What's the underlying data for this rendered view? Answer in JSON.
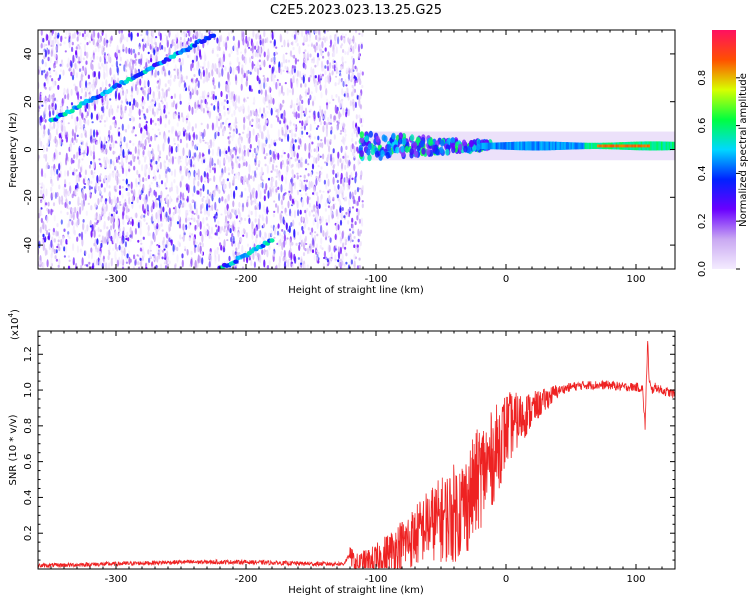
{
  "title": "C2E5.2023.023.13.25.G25",
  "chart_data": [
    {
      "type": "heatmap",
      "title": "C2E5.2023.023.13.25.G25",
      "xlabel": "Height of straight line (km)",
      "ylabel": "Frequency (Hz)",
      "xlim": [
        -360,
        130
      ],
      "ylim": [
        -50,
        50
      ],
      "xticks": [
        -300,
        -200,
        -100,
        0,
        100
      ],
      "yticks": [
        -40,
        -20,
        0,
        20,
        40
      ],
      "colorbar": {
        "label": "Normalized spectral amplitude",
        "range": [
          0,
          1
        ],
        "ticks": [
          "0.0",
          "0.2",
          "0.4",
          "0.6",
          "0.8"
        ],
        "colors": [
          "#f4ecff",
          "#c9a8f2",
          "#6a00ff",
          "#0022ff",
          "#00d8ff",
          "#00ff40",
          "#d8ff00",
          "#ff5000",
          "#ff1060"
        ]
      },
      "features": {
        "diagonal_line_upper": {
          "x": [
            -350,
            -225
          ],
          "y": [
            12,
            48
          ]
        },
        "diagonal_line_lower": {
          "x": [
            -220,
            -180
          ],
          "y": [
            -50,
            -38
          ]
        },
        "dense_noise_region_x": [
          -360,
          -110
        ],
        "carrier_line_y": 1.5
      }
    },
    {
      "type": "line",
      "xlabel": "Height of straight line (km)",
      "ylabel": "SNR (10 * v/v)",
      "y_multiplier": "(x10",
      "y_multiplier_exp": "4",
      "y_multiplier_close": ")",
      "xlim": [
        -360,
        130
      ],
      "ylim": [
        0,
        1.33
      ],
      "xticks": [
        -300,
        -200,
        -100,
        0,
        100
      ],
      "yticks": [
        0.2,
        0.4,
        0.6,
        0.8,
        1.0,
        1.2
      ],
      "series": [
        {
          "color": "#ee2222",
          "x": [
            -360,
            -300,
            -250,
            -200,
            -150,
            -125,
            -120,
            -115,
            -100,
            -90,
            -80,
            -70,
            -60,
            -50,
            -40,
            -30,
            -20,
            -10,
            0,
            10,
            20,
            30,
            40,
            50,
            60,
            70,
            80,
            90,
            100,
            105,
            107,
            109,
            110,
            112,
            115,
            120,
            125,
            130
          ],
          "y": [
            0.02,
            0.03,
            0.04,
            0.04,
            0.03,
            0.03,
            0.08,
            0.03,
            0.05,
            0.1,
            0.15,
            0.2,
            0.27,
            0.3,
            0.34,
            0.4,
            0.55,
            0.65,
            0.8,
            0.85,
            0.9,
            0.95,
            1.0,
            1.02,
            1.03,
            1.03,
            1.03,
            1.02,
            1.02,
            1.01,
            0.8,
            1.3,
            1.05,
            1.0,
            1.02,
            1.0,
            0.99,
            0.98
          ],
          "noise_envelope": {
            "x": [
              -120,
              -100,
              -80,
              -60,
              -40,
              -20,
              -5,
              10,
              25,
              40
            ],
            "amp": [
              0.05,
              0.1,
              0.15,
              0.2,
              0.28,
              0.3,
              0.25,
              0.15,
              0.08,
              0.04
            ]
          }
        }
      ]
    }
  ]
}
